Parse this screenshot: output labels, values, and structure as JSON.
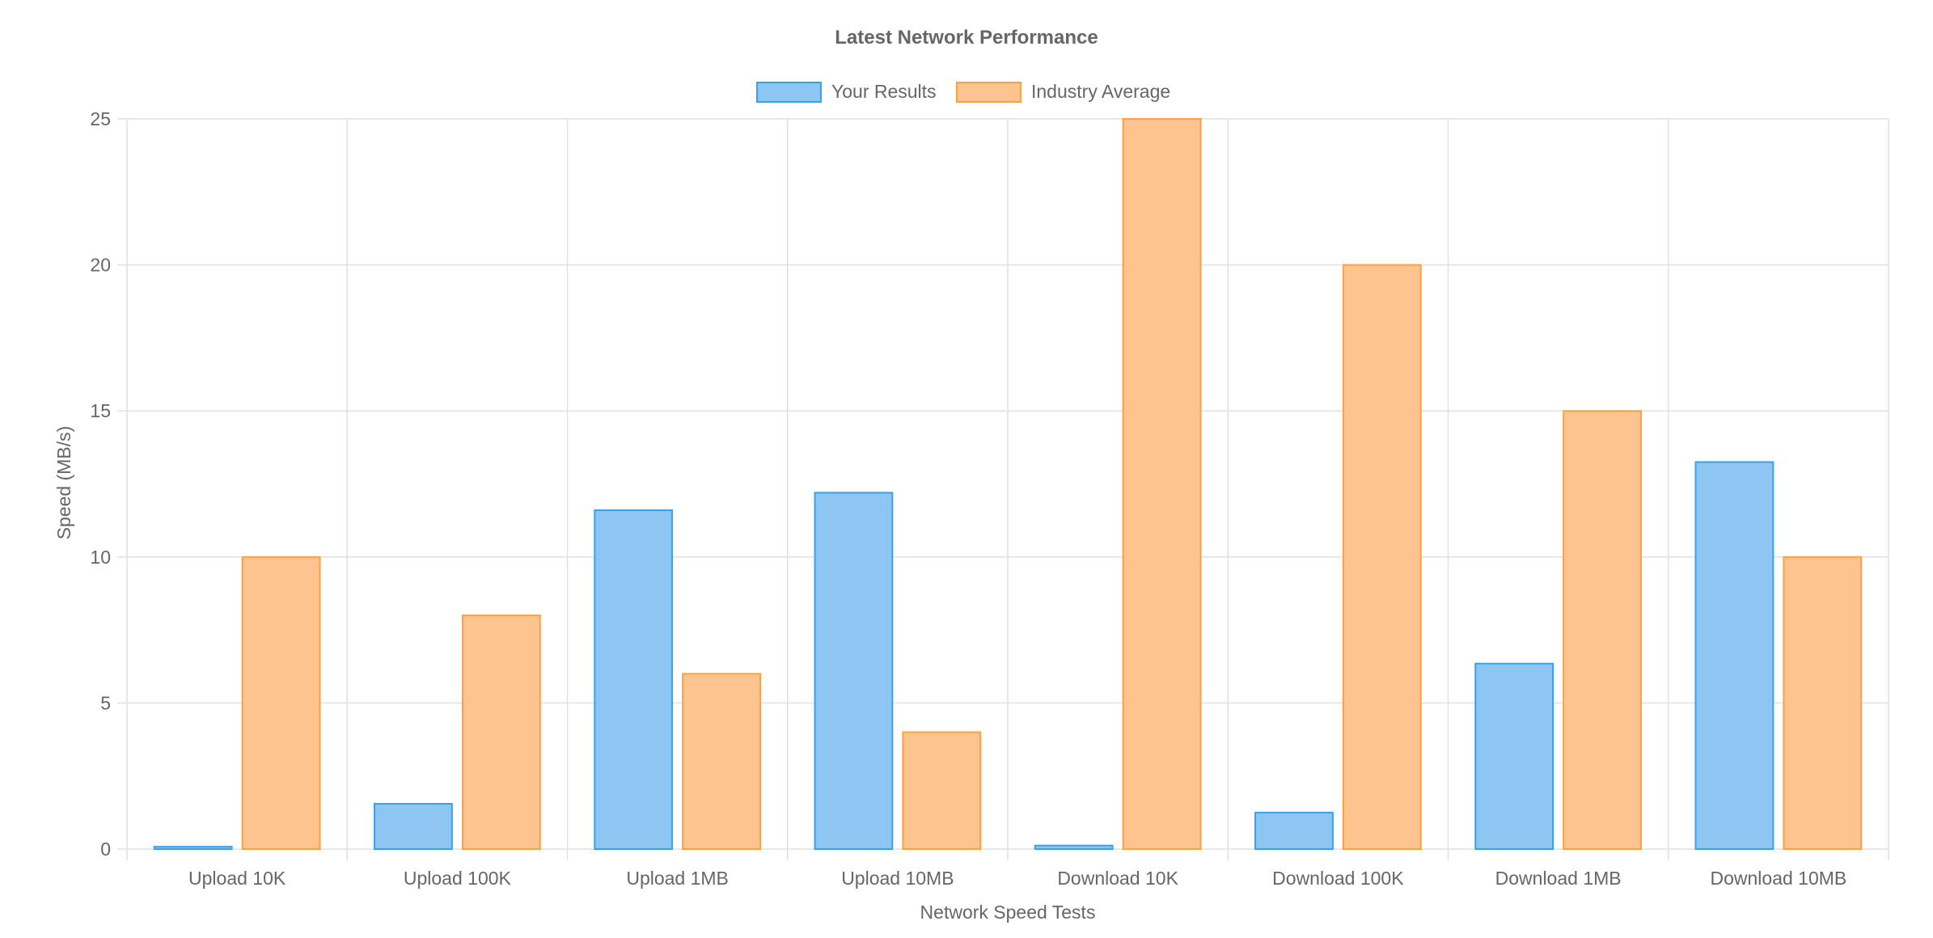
{
  "chart_data": {
    "type": "bar",
    "title": "Latest Network Performance",
    "xlabel": "Network Speed Tests",
    "ylabel": "Speed (MB/s)",
    "ylim": [
      0,
      25
    ],
    "yticks": [
      0,
      5,
      10,
      15,
      20,
      25
    ],
    "grid": true,
    "legend_position": "top-center",
    "categories": [
      "Upload 10K",
      "Upload 100K",
      "Upload 1MB",
      "Upload 10MB",
      "Download 10K",
      "Download 100K",
      "Download 1MB",
      "Download 10MB"
    ],
    "series": [
      {
        "name": "Your Results",
        "color": "#36a2eb",
        "fill": "#8ec6f3",
        "values": [
          0.08,
          1.55,
          11.6,
          12.2,
          0.12,
          1.25,
          6.35,
          13.25
        ]
      },
      {
        "name": "Industry Average",
        "color": "#ff9f40",
        "fill": "#fdc48f",
        "values": [
          10,
          8,
          6,
          4,
          25,
          20,
          15,
          10
        ]
      }
    ]
  }
}
